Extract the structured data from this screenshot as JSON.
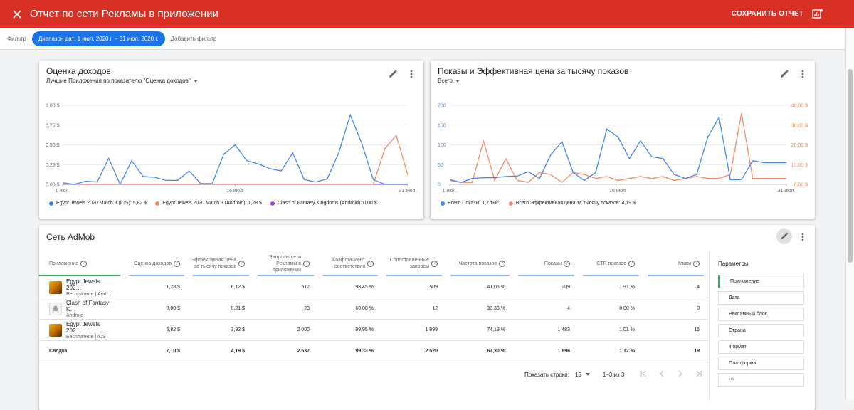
{
  "header": {
    "title": "Отчет по сети Рекламы в приложении",
    "save_label": "СОХРАНИТЬ ОТЧЕТ",
    "bg_color": "#d93025"
  },
  "filters": {
    "label": "Фильтр",
    "date_chip": "Диапазон дат: 1 июл. 2020 г. – 31 июл. 2020 г.",
    "add_filter": "Добавить фильтр"
  },
  "card1": {
    "title": "Оценка доходов",
    "subtitle": "Лучшие Приложения по показателю \"Оценка доходов\""
  },
  "card2": {
    "title": "Показы и Эффективная цена за тысячу показов",
    "subtitle": "Всего"
  },
  "chart_data": [
    {
      "type": "line",
      "x": [
        1,
        2,
        3,
        4,
        5,
        6,
        7,
        8,
        9,
        10,
        11,
        12,
        13,
        14,
        15,
        16,
        17,
        18,
        19,
        20,
        21,
        22,
        23,
        24,
        25,
        26,
        27,
        28,
        29,
        30,
        31
      ],
      "x_ticks": [
        "1 июл.",
        "16 июл.",
        "31 июл."
      ],
      "y_ticks": [
        "0,00 $",
        "0,25 $",
        "0,50 $",
        "0,75 $",
        "1,00 $"
      ],
      "ylim": [
        0,
        1.0
      ],
      "series": [
        {
          "name": "Egypt Jewels 2020 Match 3 (iOS): 5,82 $",
          "color": "#4285f4",
          "values": [
            0.02,
            0.0,
            0.04,
            0.03,
            0.33,
            0.0,
            0.3,
            0.1,
            0.09,
            0.05,
            0.05,
            0.17,
            0.01,
            0.01,
            0.38,
            0.5,
            0.3,
            0.26,
            0.2,
            0.17,
            0.4,
            0.06,
            0.03,
            0.07,
            0.4,
            0.88,
            0.52,
            0.06,
            0.0,
            0.0,
            0.0
          ]
        },
        {
          "name": "Egypt Jewels 2020 Match 3 (Android): 1,28 $",
          "color": "#f28b66",
          "values": [
            0,
            0,
            0,
            0,
            0,
            0,
            0,
            0,
            0,
            0,
            0,
            0,
            0,
            0,
            0,
            0,
            0,
            0,
            0,
            0,
            0,
            0,
            0,
            0,
            0,
            0,
            0,
            0,
            0.45,
            0.62,
            0.12
          ]
        },
        {
          "name": "Clash of Fantasy Kingdoms (Android): 0,00 $",
          "color": "#a142f4",
          "values": [
            0,
            0,
            0,
            0,
            0,
            0,
            0,
            0,
            0,
            0,
            0,
            0,
            0,
            0,
            0,
            0,
            0,
            0,
            0,
            0,
            0,
            0,
            0,
            0,
            0,
            0,
            0,
            0,
            0,
            0,
            0
          ]
        }
      ]
    },
    {
      "type": "line",
      "x": [
        1,
        2,
        3,
        4,
        5,
        6,
        7,
        8,
        9,
        10,
        11,
        12,
        13,
        14,
        15,
        16,
        17,
        18,
        19,
        20,
        21,
        22,
        23,
        24,
        25,
        26,
        27,
        28,
        29,
        30,
        31
      ],
      "x_ticks": [
        "1 июл.",
        "16 июл.",
        "31 июл."
      ],
      "y_ticks_left": [
        "0",
        "50",
        "100",
        "150",
        "200"
      ],
      "y_ticks_right": [
        "0,00 $",
        "10,00 $",
        "20,00 $",
        "30,00 $",
        "40,00 $"
      ],
      "ylim_left": [
        0,
        200
      ],
      "ylim_right": [
        0,
        40
      ],
      "series": [
        {
          "name": "Всего Показы: 1,7 тыс.",
          "color": "#4285f4",
          "axis": "left",
          "values": [
            12,
            5,
            15,
            17,
            17,
            20,
            21,
            32,
            15,
            75,
            108,
            30,
            10,
            30,
            140,
            120,
            65,
            110,
            70,
            65,
            25,
            15,
            25,
            120,
            170,
            12,
            12,
            60,
            55,
            55,
            55
          ]
        },
        {
          "name": "Всего Эффективная цена за тысячу показов: 4,19 $",
          "color": "#f28b66",
          "axis": "right",
          "values": [
            2,
            1,
            1,
            22,
            2,
            13,
            2,
            1,
            6,
            5,
            1,
            6,
            5,
            3,
            4,
            2,
            3,
            4,
            3,
            4,
            2,
            3,
            4,
            3,
            3,
            5,
            36,
            3,
            3,
            3,
            3
          ]
        }
      ]
    }
  ],
  "table": {
    "title": "Сеть AdMob",
    "headers": {
      "app": "Приложение",
      "revenue": "Оценка доходов",
      "ecpm_1": "Эффективная цена",
      "ecpm_2": "за тысячу показов",
      "requests_1": "Запросы сети",
      "requests_2": "Рекламы в",
      "requests_3": "приложении",
      "match_1": "Коэффициент",
      "match_2": "соответствия",
      "matched_1": "Сопоставленные",
      "matched_2": "запросы",
      "show_rate": "Частота показов",
      "impressions": "Показы",
      "ctr": "CTR показов",
      "clicks": "Клики"
    },
    "rows": [
      {
        "name": "Egypt Jewels 202…",
        "sub": "Бесплатное | Andr…",
        "revenue": "1,28 $",
        "ecpm": "6,12 $",
        "requests": "517",
        "match": "98,45 %",
        "matched": "509",
        "show": "41,06 %",
        "impr": "209",
        "ctr": "1,91 %",
        "clicks": "4"
      },
      {
        "name": "Clash of Fantasy K…",
        "sub": "Android",
        "revenue": "0,00 $",
        "ecpm": "0,21 $",
        "requests": "20",
        "match": "60,00 %",
        "matched": "12",
        "show": "33,33 %",
        "impr": "4",
        "ctr": "0,00 %",
        "clicks": "0"
      },
      {
        "name": "Egypt Jewels 202…",
        "sub": "Бесплатное | iOS",
        "revenue": "5,82 $",
        "ecpm": "3,92 $",
        "requests": "2 000",
        "match": "99,95 %",
        "matched": "1 999",
        "show": "74,19 %",
        "impr": "1 483",
        "ctr": "1,01 %",
        "clicks": "15"
      }
    ],
    "summary": {
      "name": "Сводка",
      "revenue": "7,10 $",
      "ecpm": "4,19 $",
      "requests": "2 537",
      "match": "99,33 %",
      "matched": "2 520",
      "show": "67,30 %",
      "impr": "1 696",
      "ctr": "1,12 %",
      "clicks": "19"
    },
    "pager": {
      "rows_label": "Показать строки:",
      "rows_value": "15",
      "range": "1–3 из 3"
    }
  },
  "params": {
    "title": "Параметры",
    "items": [
      "Приложение",
      "Дата",
      "Рекламный блок",
      "Страна",
      "Формат",
      "Платформа"
    ],
    "more": "•••"
  }
}
